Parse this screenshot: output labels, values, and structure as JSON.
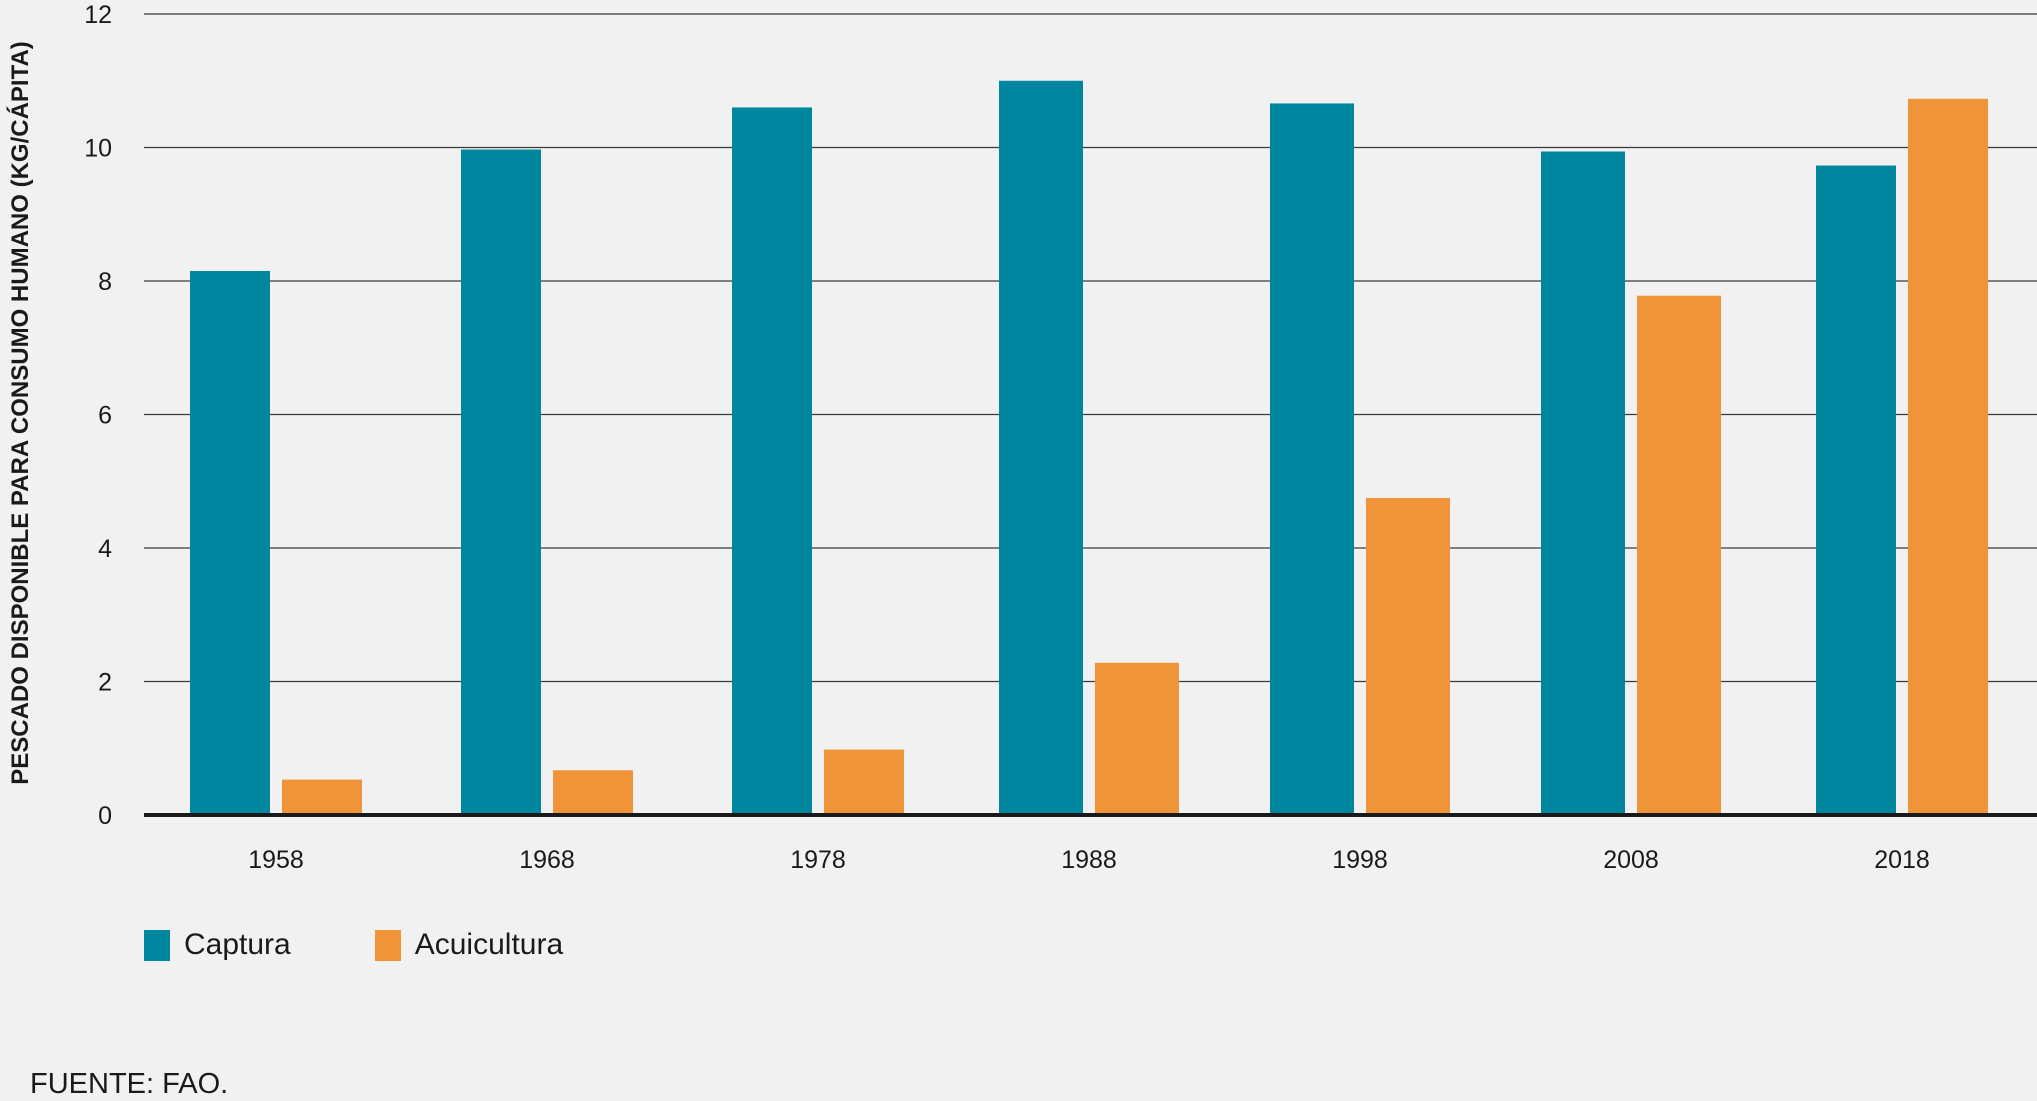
{
  "chart_data": {
    "type": "bar",
    "title": "",
    "xlabel": "",
    "ylabel": "PESCADO DISPONIBLE PARA CONSUMO HUMANO (KG/CÁPITA)",
    "ylim": [
      0,
      12
    ],
    "yticks": [
      0,
      2,
      4,
      6,
      8,
      10,
      12
    ],
    "grid": true,
    "legend_position": "bottom-left",
    "categories": [
      "1958",
      "1968",
      "1978",
      "1988",
      "1998",
      "2008",
      "2018"
    ],
    "series": [
      {
        "name": "Captura",
        "color": "#00869f",
        "values": [
          8.15,
          9.97,
          10.6,
          11.0,
          10.66,
          9.94,
          9.73
        ]
      },
      {
        "name": "Acuicultura",
        "color": "#f0943a",
        "values": [
          0.53,
          0.67,
          0.98,
          2.28,
          4.75,
          7.78,
          10.73
        ]
      }
    ]
  },
  "source": "FUENTE: FAO."
}
